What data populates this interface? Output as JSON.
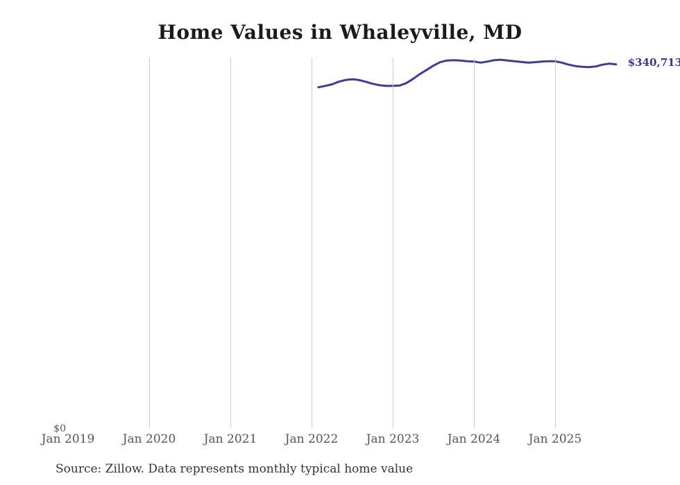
{
  "chart": {
    "title": "Home Values in Whaleyville, MD",
    "end_label": "$340,713",
    "y_zero_label": "$0",
    "source": "Source: Zillow. Data represents monthly typical home value"
  },
  "colors": {
    "line": "#3c3c9e",
    "end_label": "#35359b",
    "gridline": "#cccccc",
    "tick_label": "#555555",
    "title": "#1a1a1a",
    "source": "#333333"
  },
  "chart_data": {
    "type": "line",
    "title": "Home Values in Whaleyville, MD",
    "xlabel": "",
    "ylabel": "",
    "ylim": [
      0,
      347000
    ],
    "grid": "vertical-only",
    "legend_position": "none",
    "annotations": [
      "$340,713",
      "$0"
    ],
    "x_ticks": [
      {
        "label": "Jan 2019",
        "m": "2019-01",
        "gridline": false
      },
      {
        "label": "Jan 2020",
        "m": "2020-01",
        "gridline": true
      },
      {
        "label": "Jan 2021",
        "m": "2021-01",
        "gridline": true
      },
      {
        "label": "Jan 2022",
        "m": "2022-01",
        "gridline": true
      },
      {
        "label": "Jan 2023",
        "m": "2023-01",
        "gridline": true
      },
      {
        "label": "Jan 2024",
        "m": "2024-01",
        "gridline": true
      },
      {
        "label": "Jan 2025",
        "m": "2025-01",
        "gridline": true
      }
    ],
    "series": [
      {
        "name": "Monthly typical home value",
        "points": [
          {
            "m": "2022-02",
            "v": 319300
          },
          {
            "m": "2022-03",
            "v": 320600
          },
          {
            "m": "2022-04",
            "v": 322000
          },
          {
            "m": "2022-05",
            "v": 324500
          },
          {
            "m": "2022-06",
            "v": 326100
          },
          {
            "m": "2022-07",
            "v": 326800
          },
          {
            "m": "2022-08",
            "v": 326100
          },
          {
            "m": "2022-09",
            "v": 324500
          },
          {
            "m": "2022-10",
            "v": 322600
          },
          {
            "m": "2022-11",
            "v": 321300
          },
          {
            "m": "2022-12",
            "v": 320600
          },
          {
            "m": "2023-01",
            "v": 320600
          },
          {
            "m": "2023-02",
            "v": 320900
          },
          {
            "m": "2023-03",
            "v": 323200
          },
          {
            "m": "2023-04",
            "v": 327100
          },
          {
            "m": "2023-05",
            "v": 331600
          },
          {
            "m": "2023-06",
            "v": 335500
          },
          {
            "m": "2023-07",
            "v": 339400
          },
          {
            "m": "2023-08",
            "v": 342700
          },
          {
            "m": "2023-09",
            "v": 344300
          },
          {
            "m": "2023-10",
            "v": 344600
          },
          {
            "m": "2023-11",
            "v": 344300
          },
          {
            "m": "2023-12",
            "v": 343600
          },
          {
            "m": "2024-01",
            "v": 343300
          },
          {
            "m": "2024-02",
            "v": 342300
          },
          {
            "m": "2024-03",
            "v": 343300
          },
          {
            "m": "2024-04",
            "v": 344600
          },
          {
            "m": "2024-05",
            "v": 345000
          },
          {
            "m": "2024-06",
            "v": 344300
          },
          {
            "m": "2024-07",
            "v": 343600
          },
          {
            "m": "2024-08",
            "v": 343000
          },
          {
            "m": "2024-09",
            "v": 342300
          },
          {
            "m": "2024-10",
            "v": 342700
          },
          {
            "m": "2024-11",
            "v": 343300
          },
          {
            "m": "2024-12",
            "v": 343600
          },
          {
            "m": "2025-01",
            "v": 343600
          },
          {
            "m": "2025-02",
            "v": 342300
          },
          {
            "m": "2025-03",
            "v": 340400
          },
          {
            "m": "2025-04",
            "v": 339100
          },
          {
            "m": "2025-05",
            "v": 338400
          },
          {
            "m": "2025-06",
            "v": 338100
          },
          {
            "m": "2025-07",
            "v": 338700
          },
          {
            "m": "2025-08",
            "v": 340400
          },
          {
            "m": "2025-09",
            "v": 341400
          },
          {
            "m": "2025-10",
            "v": 340713
          }
        ]
      }
    ]
  }
}
